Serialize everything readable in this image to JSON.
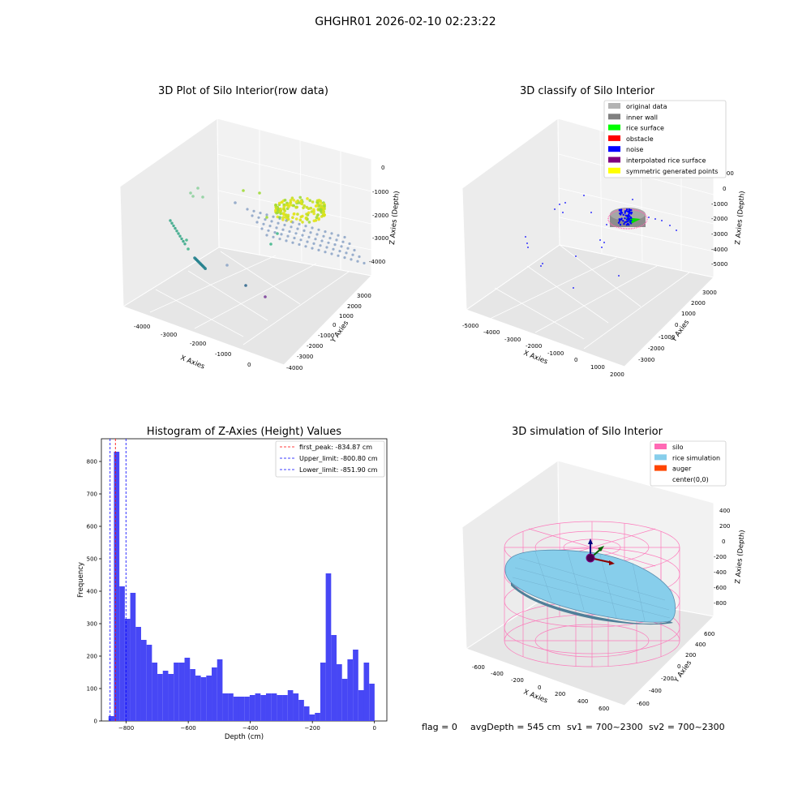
{
  "figure": {
    "suptitle": "GHGHR01 2026-02-10 02:23:22",
    "footer": {
      "flag": "flag = 0",
      "avgDepth": "avgDepth = 545 cm",
      "sv1": "sv1 = 700~2300",
      "sv2": "sv2 = 700~2300"
    }
  },
  "chart_data": [
    {
      "type": "scatter",
      "title": "3D Plot of Silo Interior(row data)",
      "xlabel": "X Axies",
      "ylabel": "Y Axies",
      "zlabel": "Z Axies (Depth)",
      "x_ticks": [
        "-4000",
        "-3000",
        "-2000",
        "-1000",
        "0"
      ],
      "y_ticks": [
        "-4000",
        "-3000",
        "-2000",
        "-1000",
        "0",
        "1000",
        "2000",
        "3000"
      ],
      "z_ticks": [
        "-4000",
        "-3000",
        "-2000",
        "-1000",
        "0"
      ],
      "colormap": "viridis"
    },
    {
      "type": "scatter",
      "title": "3D classify of Silo Interior",
      "xlabel": "X Axies",
      "ylabel": "Y Axies",
      "zlabel": "Z Axies (Depth)",
      "x_ticks": [
        "-5000",
        "-4000",
        "-3000",
        "-2000",
        "-1000",
        "0",
        "1000",
        "2000"
      ],
      "y_ticks": [
        "-3000",
        "-2000",
        "-1000",
        "0",
        "1000",
        "2000",
        "3000"
      ],
      "z_ticks": [
        "-5000",
        "-4000",
        "-3000",
        "-2000",
        "-1000",
        "0",
        "1000"
      ],
      "legend_position": "top-right",
      "legend": [
        {
          "label": "original data",
          "color": "#b3b3b3"
        },
        {
          "label": "inner wall",
          "color": "#808080"
        },
        {
          "label": "rice surface",
          "color": "#00ff00"
        },
        {
          "label": "obstacle",
          "color": "#ff0000"
        },
        {
          "label": "noise",
          "color": "#0000ff"
        },
        {
          "label": "interpolated rice surface",
          "color": "#800080"
        },
        {
          "label": "symmetric generated points",
          "color": "#ffff00"
        }
      ]
    },
    {
      "type": "bar",
      "title": "Histogram of Z-Axies (Height) Values",
      "xlabel": "Depth (cm)",
      "ylabel": "Frequency",
      "xlim": [
        -880,
        40
      ],
      "ylim": [
        0,
        870
      ],
      "x_ticks": [
        -800,
        -600,
        -400,
        -200,
        0
      ],
      "y_ticks": [
        0,
        100,
        200,
        300,
        400,
        500,
        600,
        700,
        800
      ],
      "bar_color": "#4747f5",
      "bin_width": 17.5,
      "bin_start": -857,
      "values": [
        15,
        830,
        415,
        315,
        395,
        290,
        250,
        235,
        180,
        145,
        155,
        145,
        180,
        180,
        195,
        160,
        140,
        135,
        140,
        165,
        190,
        85,
        85,
        75,
        75,
        75,
        80,
        85,
        80,
        85,
        85,
        80,
        80,
        95,
        85,
        65,
        45,
        20,
        25,
        180,
        455,
        265,
        175,
        130,
        190,
        220,
        95,
        180,
        115
      ],
      "legend_position": "top-right",
      "lines": [
        {
          "label": "first_peak: -834.87 cm",
          "x": -834.87,
          "color": "#ff0000"
        },
        {
          "label": "Upper_limit: -800.80 cm",
          "x": -800.8,
          "color": "#0000ff"
        },
        {
          "label": "Lower_limit: -851.90 cm",
          "x": -851.9,
          "color": "#0000ff"
        }
      ]
    },
    {
      "type": "area",
      "title": "3D simulation of Silo Interior",
      "xlabel": "X Axies",
      "ylabel": "Y Axies",
      "zlabel": "Z Axies (Depth)",
      "x_ticks": [
        "-600",
        "-400",
        "-200",
        "0",
        "200",
        "400",
        "600"
      ],
      "y_ticks": [
        "-600",
        "-400",
        "-200",
        "0",
        "200",
        "400",
        "600"
      ],
      "z_ticks": [
        "-800",
        "-600",
        "-400",
        "-200",
        "0",
        "200",
        "400"
      ],
      "legend_position": "top-right",
      "legend": [
        {
          "label": "silo",
          "color": "#ff69b4"
        },
        {
          "label": "rice simulation",
          "color": "#87ceeb"
        },
        {
          "label": "auger",
          "color": "#ff4500"
        },
        {
          "label": "center(0,0)",
          "color": "#ffffff"
        }
      ]
    }
  ]
}
